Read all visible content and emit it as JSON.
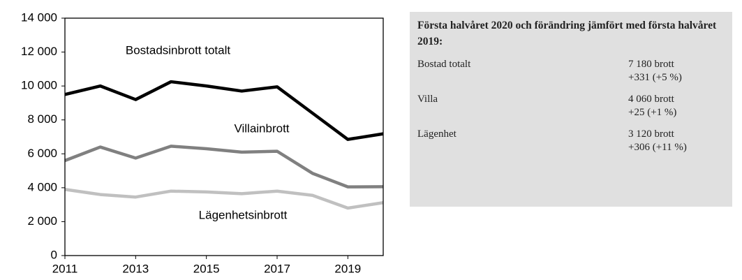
{
  "chart_data": {
    "type": "line",
    "x": [
      2011,
      2012,
      2013,
      2014,
      2015,
      2016,
      2017,
      2018,
      2019,
      2020
    ],
    "xlim": [
      2011,
      2020
    ],
    "xticks": [
      2011,
      2013,
      2015,
      2017,
      2019
    ],
    "ylim": [
      0,
      14000
    ],
    "yticks": [
      0,
      {
        "value": 2000,
        "label": "2 000"
      },
      {
        "value": 4000,
        "label": "4 000"
      },
      {
        "value": 6000,
        "label": "6 000"
      },
      {
        "value": 8000,
        "label": "8 000"
      },
      {
        "value": 10000,
        "label": "10 000"
      },
      {
        "value": 12000,
        "label": "12 000"
      },
      {
        "value": 14000,
        "label": "14 000"
      }
    ],
    "grid": false,
    "series": [
      {
        "name": "Bostadsinbrott totalt",
        "color": "#000000",
        "values": [
          9500,
          10000,
          9200,
          10250,
          10000,
          9700,
          9950,
          8400,
          6850,
          7180
        ]
      },
      {
        "name": "Villainbrott",
        "color": "#808080",
        "values": [
          5600,
          6400,
          5750,
          6450,
          6300,
          6100,
          6150,
          4850,
          4050,
          4060
        ]
      },
      {
        "name": "Lägenhetsinbrott",
        "color": "#c0c0c0",
        "values": [
          3900,
          3600,
          3450,
          3800,
          3750,
          3650,
          3800,
          3550,
          2800,
          3120
        ]
      }
    ]
  },
  "panel": {
    "title": "Första halvåret 2020 och förändring jämfört med första halvåret 2019:",
    "rows": [
      {
        "label": "Bostad totalt",
        "lines": [
          "7 180 brott",
          "+331 (+5 %)"
        ]
      },
      {
        "label": "Villa",
        "lines": [
          "4 060 brott",
          "+25 (+1 %)"
        ]
      },
      {
        "label": "Lägenhet",
        "lines": [
          "3 120 brott",
          "+306 (+11 %)"
        ]
      }
    ]
  }
}
